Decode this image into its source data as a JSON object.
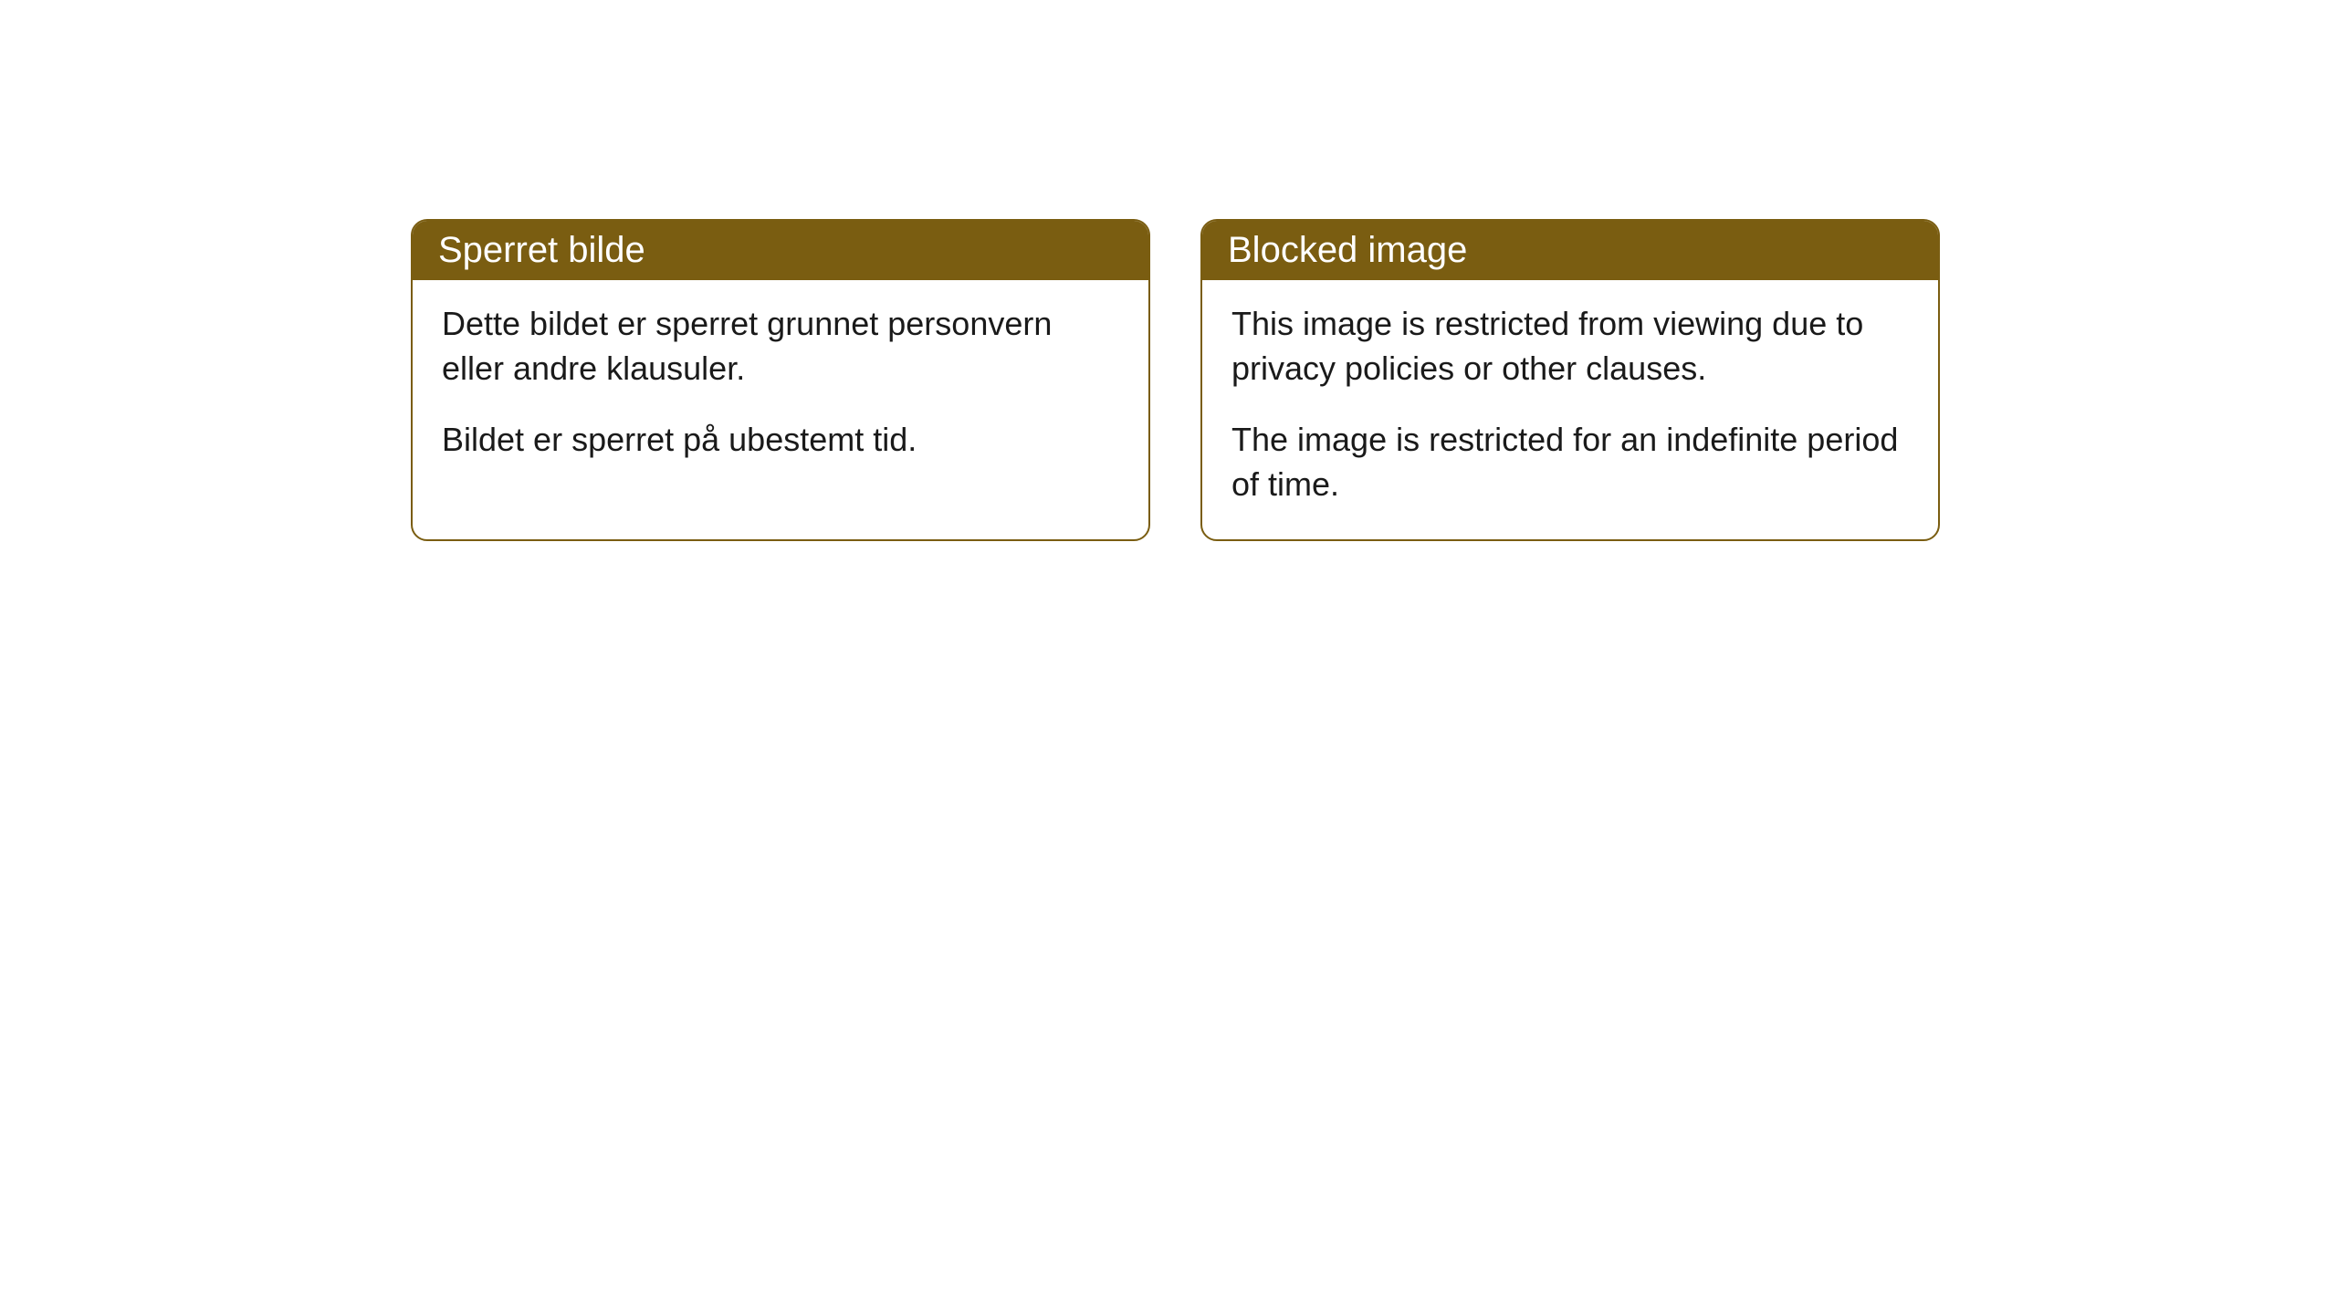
{
  "cards": [
    {
      "title": "Sperret bilde",
      "paragraph1": "Dette bildet er sperret grunnet personvern eller andre klausuler.",
      "paragraph2": "Bildet er sperret på ubestemt tid."
    },
    {
      "title": "Blocked image",
      "paragraph1": "This image is restricted from viewing due to privacy policies or other clauses.",
      "paragraph2": "The image is restricted for an indefinite period of time."
    }
  ],
  "style": {
    "header_background_color": "#7a5d11",
    "header_text_color": "#ffffff",
    "border_color": "#7a5d11",
    "body_background_color": "#ffffff",
    "body_text_color": "#1a1a1a",
    "border_radius": 18,
    "title_fontsize": 40,
    "body_fontsize": 36
  }
}
